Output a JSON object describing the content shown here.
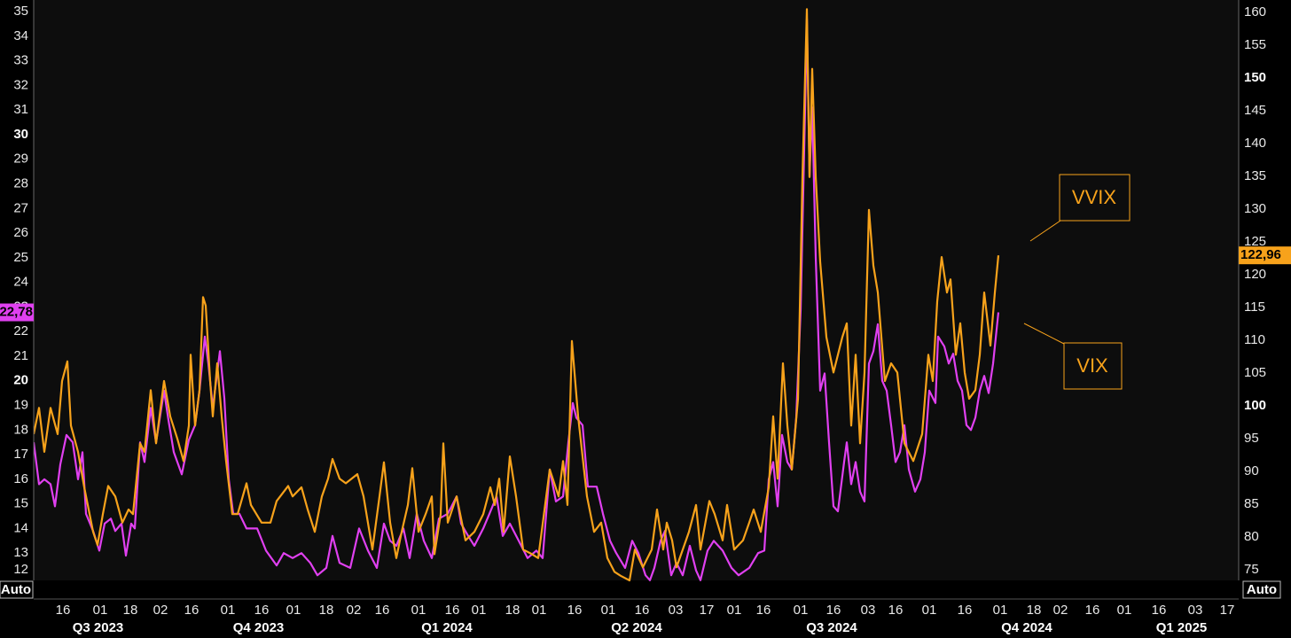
{
  "chart_data": {
    "type": "line",
    "axis_mode": "Auto",
    "xlim": [
      0,
      1359
    ],
    "xticks": [
      {
        "value": 33,
        "label": "16"
      },
      {
        "value": 75,
        "label": "01"
      },
      {
        "value": 109,
        "label": "18"
      },
      {
        "value": 143,
        "label": "02"
      },
      {
        "value": 178,
        "label": "16"
      },
      {
        "value": 219,
        "label": "01"
      },
      {
        "value": 257,
        "label": "16"
      },
      {
        "value": 293,
        "label": "01"
      },
      {
        "value": 330,
        "label": "18"
      },
      {
        "value": 361,
        "label": "02"
      },
      {
        "value": 393,
        "label": "16"
      },
      {
        "value": 434,
        "label": "01"
      },
      {
        "value": 472,
        "label": "16"
      },
      {
        "value": 502,
        "label": "01"
      },
      {
        "value": 540,
        "label": "18"
      },
      {
        "value": 570,
        "label": "01"
      },
      {
        "value": 610,
        "label": "16"
      },
      {
        "value": 648,
        "label": "01"
      },
      {
        "value": 686,
        "label": "16"
      },
      {
        "value": 724,
        "label": "03"
      },
      {
        "value": 759,
        "label": "17"
      },
      {
        "value": 790,
        "label": "01"
      },
      {
        "value": 823,
        "label": "16"
      },
      {
        "value": 865,
        "label": "01"
      },
      {
        "value": 902,
        "label": "16"
      },
      {
        "value": 941,
        "label": "03"
      },
      {
        "value": 972,
        "label": "16"
      },
      {
        "value": 1010,
        "label": "01"
      },
      {
        "value": 1050,
        "label": "16"
      },
      {
        "value": 1090,
        "label": "01"
      },
      {
        "value": 1128,
        "label": "18"
      },
      {
        "value": 1158,
        "label": "02"
      },
      {
        "value": 1194,
        "label": "16"
      },
      {
        "value": 1230,
        "label": "01"
      },
      {
        "value": 1269,
        "label": "16"
      },
      {
        "value": 1310,
        "label": "03"
      },
      {
        "value": 1346,
        "label": "17"
      }
    ],
    "quarters": [
      {
        "label": "Q3 2023",
        "start": 0,
        "end": 145
      },
      {
        "label": "Q4 2023",
        "start": 145,
        "end": 362
      },
      {
        "label": "Q1 2024",
        "start": 362,
        "end": 570
      },
      {
        "label": "Q2 2024",
        "start": 570,
        "end": 790
      },
      {
        "label": "Q3 2024",
        "start": 790,
        "end": 1010
      },
      {
        "label": "Q4 2024",
        "start": 1010,
        "end": 1230
      },
      {
        "label": "Q1 2025",
        "start": 1230,
        "end": 1359
      }
    ],
    "ylim": [
      12,
      35.47
    ],
    "yticks": [
      12,
      13,
      14,
      15,
      16,
      17,
      18,
      19,
      20,
      21,
      22,
      23,
      24,
      25,
      26,
      27,
      28,
      29,
      30,
      31,
      32,
      33,
      34,
      35
    ],
    "y2lim": [
      73.8,
      161.9
    ],
    "y2ticks": [
      75,
      80,
      85,
      90,
      95,
      100,
      105,
      110,
      115,
      120,
      125,
      130,
      135,
      140,
      145,
      150,
      155,
      160
    ],
    "grid": true,
    "series": [
      {
        "name": "VIX",
        "color": "#e040f0",
        "axis": "y",
        "last_label": "22,78",
        "x": [
          0,
          6,
          12,
          19,
          24,
          30,
          37,
          44,
          50,
          55,
          59,
          67,
          74,
          80,
          87,
          92,
          99,
          104,
          110,
          114,
          120,
          125,
          132,
          138,
          147,
          152,
          158,
          167,
          175,
          182,
          187,
          193,
          197,
          202,
          210,
          215,
          220,
          225,
          232,
          240,
          252,
          262,
          274,
          282,
          292,
          302,
          312,
          320,
          330,
          337,
          345,
          357,
          367,
          377,
          387,
          395,
          402,
          409,
          417,
          424,
          432,
          440,
          449,
          457,
          467,
          477,
          482,
          490,
          497,
          507,
          514,
          522,
          529,
          537,
          547,
          557,
          567,
          574,
          582,
          589,
          597,
          603,
          608,
          612,
          619,
          625,
          635,
          642,
          650,
          657,
          667,
          675,
          682,
          690,
          695,
          700,
          707,
          712,
          719,
          725,
          732,
          740,
          747,
          752,
          760,
          767,
          777,
          787,
          795,
          807,
          817,
          824,
          829,
          834,
          839,
          844,
          850,
          855,
          860,
          865,
          870,
          872,
          875,
          878,
          882,
          887,
          892,
          897,
          902,
          907,
          914,
          917,
          922,
          927,
          932,
          937,
          942,
          947,
          952,
          957,
          962,
          967,
          972,
          977,
          982,
          987,
          994,
          1000,
          1005,
          1010,
          1017,
          1020,
          1027,
          1032,
          1037,
          1042,
          1047,
          1052,
          1057,
          1062,
          1067,
          1072,
          1077,
          1082,
          1088
        ],
        "values": [
          17.5,
          15.8,
          16.0,
          15.8,
          14.9,
          16.6,
          17.8,
          17.5,
          16.0,
          17.1,
          14.6,
          13.9,
          13.1,
          14.2,
          14.4,
          13.9,
          14.2,
          12.9,
          14.2,
          14.0,
          17.5,
          16.7,
          18.9,
          17.5,
          19.6,
          18.4,
          17.1,
          16.2,
          17.6,
          18.2,
          19.6,
          21.8,
          20.7,
          18.9,
          21.2,
          19.3,
          16.0,
          14.6,
          14.6,
          14.0,
          14.0,
          13.1,
          12.5,
          13.0,
          12.8,
          13.0,
          12.6,
          12.1,
          12.4,
          13.7,
          12.6,
          12.4,
          14.0,
          13.1,
          12.4,
          14.2,
          13.5,
          13.3,
          14.0,
          12.8,
          14.6,
          13.5,
          12.8,
          14.4,
          14.6,
          15.3,
          14.2,
          13.7,
          13.3,
          14.0,
          14.6,
          15.3,
          13.7,
          14.2,
          13.5,
          12.8,
          13.1,
          12.8,
          16.4,
          15.1,
          15.3,
          17.5,
          19.1,
          18.5,
          18.2,
          15.7,
          15.7,
          14.6,
          13.5,
          13.0,
          12.4,
          13.5,
          13.0,
          12.1,
          11.9,
          12.4,
          13.5,
          13.9,
          12.1,
          12.6,
          12.1,
          13.3,
          12.3,
          11.9,
          13.1,
          13.5,
          13.1,
          12.4,
          12.1,
          12.4,
          13.0,
          13.1,
          16.0,
          16.7,
          14.9,
          17.8,
          16.7,
          16.4,
          18.5,
          22.9,
          31.1,
          34.7,
          28.3,
          31.1,
          25.0,
          19.6,
          20.3,
          17.5,
          14.9,
          14.7,
          16.7,
          17.5,
          15.8,
          16.7,
          15.5,
          15.1,
          20.7,
          21.2,
          22.3,
          20.0,
          19.6,
          18.2,
          16.7,
          17.1,
          18.2,
          16.4,
          15.5,
          16.0,
          17.1,
          19.6,
          19.1,
          21.8,
          21.4,
          20.7,
          21.1,
          20.0,
          19.6,
          18.2,
          18.0,
          18.5,
          19.6,
          20.2,
          19.5,
          20.7,
          22.78
        ]
      },
      {
        "name": "VVIX",
        "color": "#f7a21b",
        "axis": "y2",
        "last_label": "122,96",
        "x": [
          0,
          6,
          12,
          19,
          27,
          32,
          38,
          42,
          50,
          57,
          67,
          72,
          78,
          84,
          92,
          100,
          107,
          112,
          120,
          125,
          132,
          138,
          147,
          154,
          162,
          169,
          175,
          177,
          182,
          187,
          191,
          194,
          199,
          202,
          207,
          212,
          217,
          224,
          230,
          240,
          245,
          257,
          267,
          274,
          287,
          292,
          302,
          309,
          317,
          325,
          332,
          337,
          345,
          352,
          365,
          372,
          382,
          390,
          395,
          402,
          409,
          415,
          422,
          427,
          434,
          442,
          449,
          452,
          459,
          462,
          467,
          477,
          487,
          497,
          507,
          515,
          520,
          525,
          530,
          537,
          544,
          552,
          562,
          569,
          582,
          592,
          597,
          602,
          607,
          614,
          624,
          632,
          640,
          647,
          655,
          662,
          672,
          678,
          687,
          697,
          703,
          710,
          714,
          720,
          725,
          732,
          739,
          747,
          752,
          762,
          768,
          777,
          782,
          790,
          800,
          807,
          812,
          820,
          829,
          834,
          839,
          845,
          850,
          855,
          862,
          867,
          872,
          875,
          878,
          882,
          887,
          894,
          902,
          912,
          917,
          922,
          927,
          932,
          937,
          942,
          947,
          952,
          960,
          967,
          974,
          982,
          992,
          1002,
          1009,
          1014,
          1019,
          1024,
          1030,
          1034,
          1040,
          1045,
          1050,
          1055,
          1062,
          1067,
          1072,
          1079,
          1084,
          1088
        ],
        "values": [
          95.7,
          99.7,
          93.0,
          99.7,
          95.7,
          103.8,
          106.8,
          97.0,
          93.0,
          87.6,
          80.8,
          78.8,
          83.5,
          87.8,
          86.2,
          82.2,
          84.2,
          83.5,
          94.3,
          93.0,
          102.4,
          94.3,
          103.8,
          98.4,
          95.0,
          91.6,
          97.0,
          107.8,
          97.0,
          102.4,
          116.6,
          115.3,
          103.8,
          98.4,
          106.5,
          98.4,
          91.6,
          83.5,
          83.5,
          88.2,
          84.9,
          82.2,
          82.2,
          85.5,
          87.8,
          86.2,
          87.6,
          84.2,
          80.8,
          86.2,
          88.9,
          91.9,
          88.9,
          88.2,
          89.6,
          86.2,
          78.1,
          86.2,
          91.4,
          82.2,
          76.8,
          80.8,
          84.9,
          90.5,
          80.8,
          83.5,
          86.2,
          77.4,
          83.5,
          94.3,
          82.2,
          86.2,
          79.5,
          80.8,
          83.5,
          87.6,
          84.9,
          88.9,
          80.8,
          92.3,
          86.2,
          78.1,
          77.4,
          76.8,
          90.3,
          86.2,
          91.6,
          84.9,
          109.9,
          98.4,
          86.2,
          80.8,
          82.2,
          76.8,
          74.7,
          74.1,
          73.4,
          78.1,
          75.4,
          78.1,
          84.2,
          78.1,
          82.2,
          79.5,
          75.4,
          78.1,
          80.8,
          84.9,
          78.1,
          85.5,
          83.5,
          79.5,
          84.9,
          78.1,
          79.5,
          82.2,
          84.2,
          80.8,
          87.6,
          98.4,
          88.9,
          106.5,
          97.0,
          90.3,
          101.1,
          134.9,
          160.5,
          134.9,
          151.4,
          134.9,
          122.0,
          110.5,
          105.1,
          110.5,
          112.6,
          97.0,
          107.8,
          94.3,
          105.1,
          129.9,
          121.4,
          117.3,
          103.8,
          106.5,
          105.1,
          94.3,
          91.6,
          95.7,
          107.8,
          103.8,
          115.9,
          122.7,
          117.3,
          119.3,
          107.8,
          112.6,
          105.1,
          101.1,
          102.4,
          107.8,
          117.3,
          109.2,
          117.3,
          122.96
        ]
      }
    ]
  }
}
